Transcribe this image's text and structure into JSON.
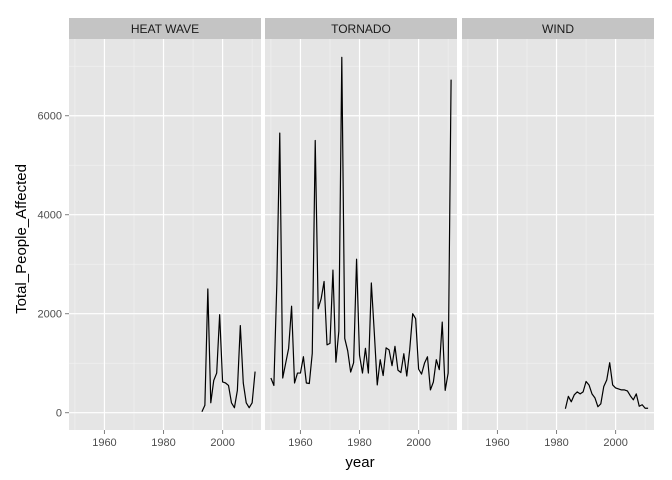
{
  "chart_data": {
    "type": "line",
    "xlabel": "year",
    "ylabel": "Total_People_Affected",
    "xlim": [
      1948,
      2013
    ],
    "ylim": [
      -350,
      7550
    ],
    "x_ticks": [
      1960,
      1980,
      2000
    ],
    "x_tick_labels": [
      "1960",
      "1980",
      "2000"
    ],
    "y_ticks": [
      0,
      2000,
      4000,
      6000
    ],
    "y_tick_labels": [
      "0",
      "2000",
      "4000",
      "6000"
    ],
    "grid": true,
    "facets": [
      {
        "label": "HEAT WAVE",
        "x": [
          1993,
          1994,
          1995,
          1996,
          1997,
          1998,
          1999,
          2000,
          2001,
          2002,
          2003,
          2004,
          2005,
          2006,
          2007,
          2008,
          2009,
          2010,
          2011
        ],
        "y": [
          20,
          150,
          2500,
          200,
          650,
          800,
          1980,
          620,
          600,
          550,
          200,
          100,
          450,
          1760,
          600,
          200,
          100,
          200,
          830
        ]
      },
      {
        "label": "TORNADO",
        "x": [
          1950,
          1951,
          1952,
          1953,
          1954,
          1955,
          1956,
          1957,
          1958,
          1959,
          1960,
          1961,
          1962,
          1963,
          1964,
          1965,
          1966,
          1967,
          1968,
          1969,
          1970,
          1971,
          1972,
          1973,
          1974,
          1975,
          1976,
          1977,
          1978,
          1979,
          1980,
          1981,
          1982,
          1983,
          1984,
          1985,
          1986,
          1987,
          1988,
          1989,
          1990,
          1991,
          1992,
          1993,
          1994,
          1995,
          1996,
          1997,
          1998,
          1999,
          2000,
          2001,
          2002,
          2003,
          2004,
          2005,
          2006,
          2007,
          2008,
          2009,
          2010,
          2011
        ],
        "y": [
          700,
          550,
          2600,
          5650,
          700,
          1000,
          1300,
          2150,
          600,
          800,
          800,
          1130,
          600,
          590,
          1200,
          5500,
          2100,
          2300,
          2650,
          1370,
          1400,
          2880,
          1020,
          1650,
          7180,
          1500,
          1250,
          820,
          1010,
          3100,
          1160,
          800,
          1300,
          800,
          2620,
          1620,
          560,
          1070,
          750,
          1310,
          1270,
          950,
          1340,
          860,
          810,
          1190,
          740,
          1280,
          2000,
          1900,
          880,
          780,
          1000,
          1130,
          460,
          620,
          1070,
          870,
          1830,
          450,
          800,
          6730
        ]
      },
      {
        "label": "WIND",
        "x": [
          1983,
          1984,
          1985,
          1986,
          1987,
          1988,
          1989,
          1990,
          1991,
          1992,
          1993,
          1994,
          1995,
          1996,
          1997,
          1998,
          1999,
          2000,
          2001,
          2002,
          2003,
          2004,
          2005,
          2006,
          2007,
          2008,
          2009,
          2010,
          2011
        ],
        "y": [
          80,
          330,
          220,
          360,
          420,
          380,
          420,
          630,
          560,
          380,
          300,
          120,
          180,
          530,
          660,
          1010,
          560,
          500,
          480,
          460,
          460,
          440,
          340,
          260,
          380,
          130,
          160,
          90,
          90
        ]
      }
    ]
  }
}
